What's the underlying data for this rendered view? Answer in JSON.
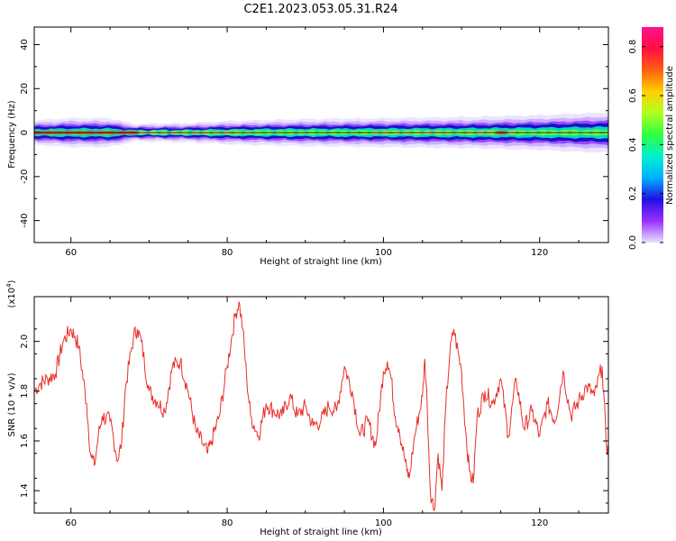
{
  "figure_title": "C2E1.2023.053.05.31.R24",
  "colors": {
    "snr_line": "#e8302a",
    "band_colormap": [
      "#ffffff",
      "#e8d8ff",
      "#a060ff",
      "#1a10c8",
      "#00e0c0",
      "#40ff60",
      "#ffe040",
      "#ff3030"
    ],
    "colorbar": [
      "#e8e0ff",
      "#9a30ff",
      "#2010e0",
      "#00b0ff",
      "#00f0d0",
      "#30ff40",
      "#b0ff20",
      "#ffd000",
      "#ff6010",
      "#ff1040",
      "#ff1090"
    ]
  },
  "chart_data": [
    {
      "type": "heatmap",
      "title": "",
      "xlabel": "Height of straight line (km)",
      "ylabel": "Frequency (Hz)",
      "xlim": [
        55.3,
        128.8
      ],
      "ylim": [
        -50,
        48
      ],
      "xticks": [
        "60",
        "80",
        "100",
        "120"
      ],
      "yticks": [
        "-40",
        "-20",
        "0",
        "20",
        "40"
      ],
      "colorbar": {
        "label": "Normalized spectral amplitude",
        "range": [
          0,
          0.88
        ],
        "ticks": [
          "0.0",
          "0.2",
          "0.4",
          "0.6",
          "0.8"
        ]
      },
      "band": {
        "center_frequency": 0,
        "half_width_hz": [
          [
            55.3,
            2.5
          ],
          [
            60,
            3
          ],
          [
            65,
            3
          ],
          [
            68,
            1.8
          ],
          [
            75,
            2
          ],
          [
            80,
            2.4
          ],
          [
            90,
            2.8
          ],
          [
            100,
            3
          ],
          [
            110,
            3.2
          ],
          [
            120,
            3.6
          ],
          [
            128.8,
            4.2
          ]
        ],
        "peak_amplitude": [
          [
            56,
            0.82
          ],
          [
            60,
            0.84
          ],
          [
            64,
            0.84
          ],
          [
            66,
            0.85
          ],
          [
            68,
            0.8
          ],
          [
            70,
            0.6
          ],
          [
            72,
            0.7
          ],
          [
            76,
            0.78
          ],
          [
            78,
            0.7
          ],
          [
            80,
            0.55
          ],
          [
            85,
            0.45
          ],
          [
            90,
            0.5
          ],
          [
            95,
            0.45
          ],
          [
            100,
            0.55
          ],
          [
            105,
            0.6
          ],
          [
            110,
            0.5
          ],
          [
            115,
            0.82
          ],
          [
            118,
            0.45
          ],
          [
            122,
            0.45
          ],
          [
            125,
            0.5
          ],
          [
            128.8,
            0.45
          ]
        ]
      }
    },
    {
      "type": "line",
      "title": "",
      "xlabel": "Height of straight line (km)",
      "ylabel": "SNR (10 * v/v)",
      "y_multiplier": "(x10^4)",
      "xlim": [
        55.3,
        128.8
      ],
      "ylim": [
        1.31,
        2.18
      ],
      "xticks": [
        "60",
        "80",
        "100",
        "120"
      ],
      "yticks": [
        "1.4",
        "1.6",
        "1.8",
        "2.0"
      ],
      "series": [
        {
          "name": "",
          "x": [
            55.3,
            56,
            57,
            58,
            59,
            60,
            60.5,
            61,
            62,
            62.5,
            63,
            63.5,
            64,
            65,
            66,
            66.5,
            67,
            68,
            68.5,
            69,
            70,
            71,
            72,
            73,
            74,
            75,
            76,
            77,
            77.5,
            78,
            79,
            80,
            80.5,
            81,
            81.5,
            82,
            82.5,
            83,
            84,
            85,
            86,
            87,
            88,
            89,
            90,
            91,
            92,
            93,
            94,
            95,
            96,
            97,
            98,
            99,
            100,
            100.5,
            101,
            101.5,
            102,
            103,
            103.3,
            104,
            105,
            105.3,
            105.6,
            106,
            106.5,
            107,
            107.5,
            108,
            108.5,
            109,
            110,
            110.5,
            111,
            111.5,
            112,
            113,
            114,
            115,
            116,
            117,
            118,
            119,
            120,
            121,
            122,
            123,
            124,
            125,
            126,
            127,
            128,
            128.5,
            128.8
          ],
          "y": [
            1.8,
            1.83,
            1.85,
            1.87,
            2.0,
            2.05,
            2.02,
            1.98,
            1.75,
            1.55,
            1.5,
            1.62,
            1.7,
            1.68,
            1.52,
            1.6,
            1.82,
            2.02,
            2.05,
            2.0,
            1.8,
            1.76,
            1.72,
            1.9,
            1.92,
            1.8,
            1.64,
            1.58,
            1.55,
            1.6,
            1.7,
            1.9,
            2.0,
            2.1,
            2.16,
            2.05,
            1.85,
            1.7,
            1.62,
            1.75,
            1.72,
            1.7,
            1.78,
            1.7,
            1.74,
            1.66,
            1.68,
            1.74,
            1.72,
            1.9,
            1.8,
            1.62,
            1.68,
            1.58,
            1.88,
            1.92,
            1.85,
            1.7,
            1.65,
            1.48,
            1.45,
            1.62,
            1.78,
            1.93,
            1.75,
            1.4,
            1.32,
            1.55,
            1.4,
            1.75,
            1.95,
            2.05,
            1.88,
            1.65,
            1.48,
            1.43,
            1.7,
            1.8,
            1.75,
            1.85,
            1.62,
            1.85,
            1.65,
            1.72,
            1.62,
            1.75,
            1.68,
            1.88,
            1.7,
            1.76,
            1.82,
            1.78,
            1.9,
            1.6,
            1.55
          ]
        }
      ]
    }
  ]
}
